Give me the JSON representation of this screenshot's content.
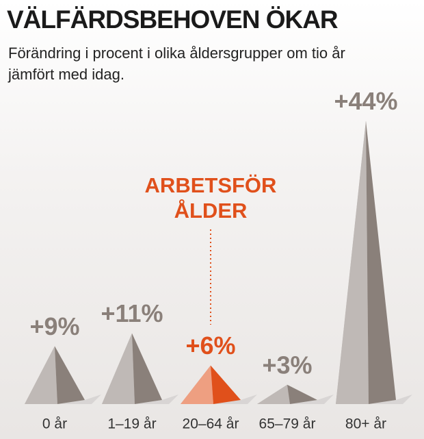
{
  "chart_data": {
    "type": "pyramid",
    "title": "VÄLFÄRDSBEHOVEN ÖKAR",
    "subtitle": "Förändring i procent i olika åldersgrupper om tio år jämfört med idag.",
    "categories": [
      "0 år",
      "1–19 år",
      "20–64 år",
      "65–79 år",
      "80+ år"
    ],
    "values": [
      9,
      11,
      6,
      3,
      44
    ],
    "value_labels": [
      "+9%",
      "+11%",
      "+6%",
      "+3%",
      "+44%"
    ],
    "colors": [
      "#8a807a",
      "#8a807a",
      "#e0501b",
      "#8a807a",
      "#8a807a"
    ],
    "annotation": "ARBETSFÖR ÅLDER",
    "annotation_color": "#e0501b"
  }
}
